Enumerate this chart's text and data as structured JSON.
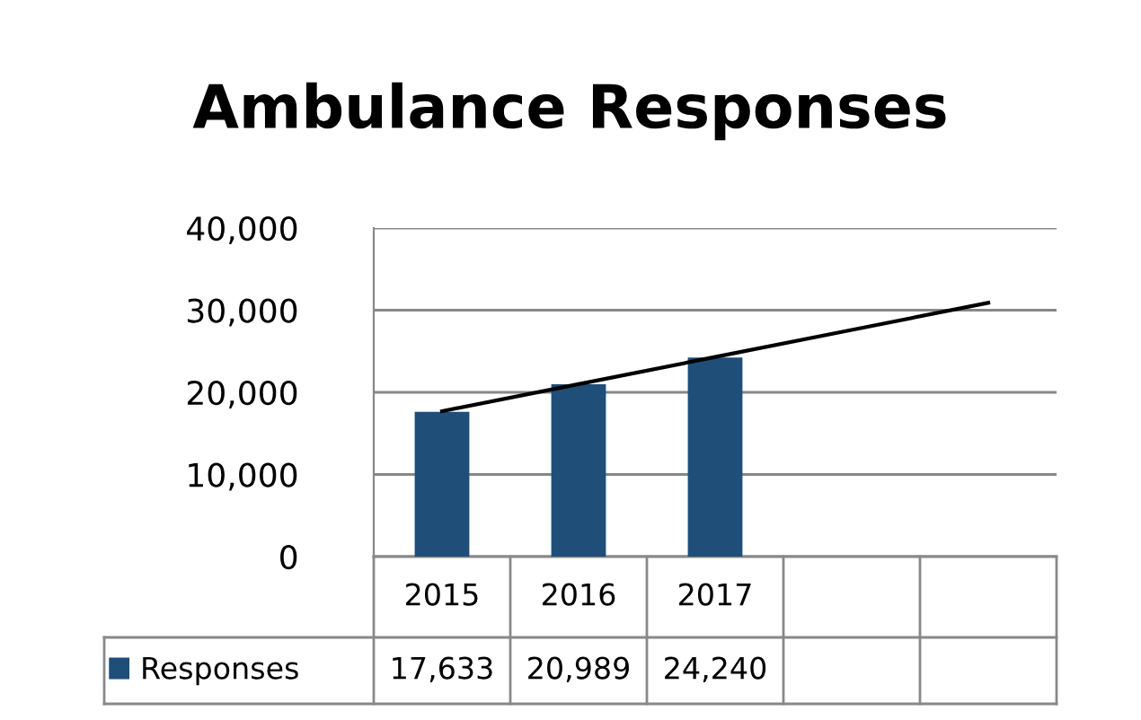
{
  "chart_data": {
    "type": "bar",
    "title": "Ambulance Responses",
    "categories": [
      "2015",
      "2016",
      "2017",
      null,
      null
    ],
    "series": [
      {
        "name": "Responses",
        "color": "#1f4e79",
        "values": [
          17633,
          20989,
          24240,
          null,
          null
        ],
        "value_labels": [
          "17,633",
          "20,989",
          "24,240",
          null,
          null
        ]
      },
      {
        "type": "line",
        "color": "#000000",
        "values": [
          17700,
          21000,
          24300,
          27600,
          30900
        ]
      }
    ],
    "ylim": [
      0,
      40000
    ],
    "yticks": [
      {
        "value": 0,
        "label": "0"
      },
      {
        "value": 10000,
        "label": "10,000"
      },
      {
        "value": 20000,
        "label": "20,000"
      },
      {
        "value": 30000,
        "label": "30,000"
      },
      {
        "value": 40000,
        "label": "40,000"
      }
    ],
    "grid": "y",
    "legend": "bottom"
  }
}
